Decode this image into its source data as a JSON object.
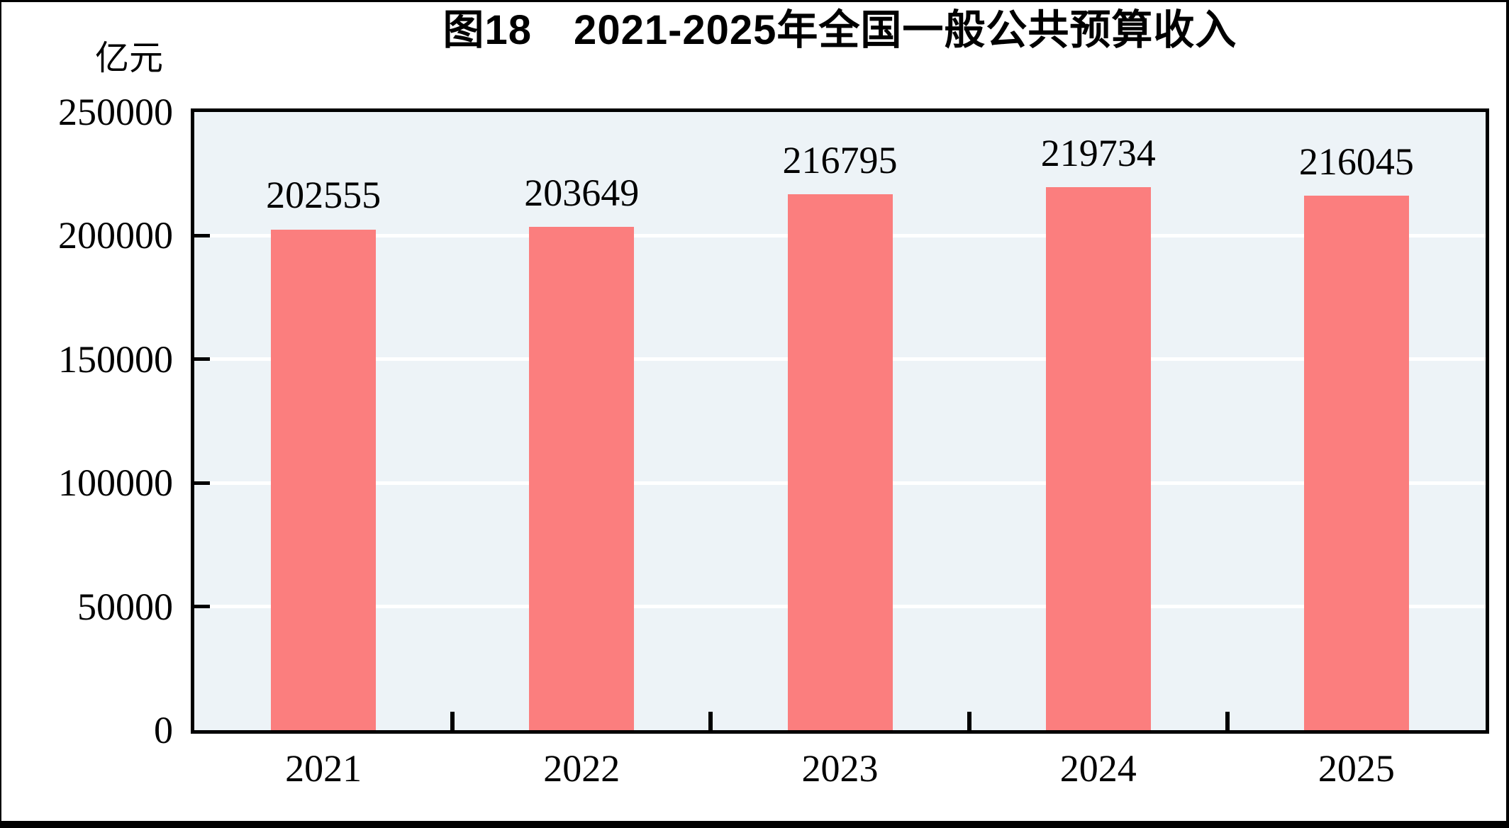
{
  "figure": {
    "title": "图18　2021-2025年全国一般公共预算收入",
    "unit_label": "亿元"
  },
  "chart_data": {
    "type": "bar",
    "title": "图18　2021-2025年全国一般公共预算收入",
    "categories": [
      "2021",
      "2022",
      "2023",
      "2024",
      "2025"
    ],
    "values": [
      202555,
      203649,
      216795,
      219734,
      216045
    ],
    "value_labels": [
      "202555",
      "203649",
      "216795",
      "219734",
      "216045"
    ],
    "xlabel": "",
    "ylabel": "亿元",
    "ylim": [
      0,
      250000
    ],
    "ytick_interval": 50000,
    "ytick_labels": [
      "0",
      "50000",
      "100000",
      "150000",
      "200000",
      "250000"
    ],
    "grid": true,
    "legend": false,
    "colors": {
      "bar": "#fb7e7e",
      "plot_background": "#edf3f7",
      "gridline": "#ffffff",
      "axis": "#000000",
      "text": "#000000"
    }
  }
}
